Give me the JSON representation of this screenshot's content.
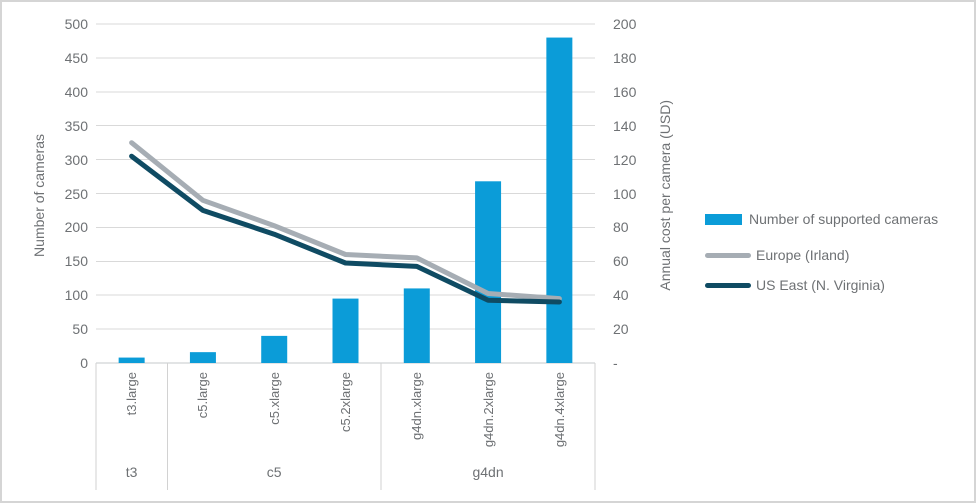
{
  "chart_data": {
    "type": "combo-bar-line",
    "categories": [
      "t3.large",
      "c5.large",
      "c5.xlarge",
      "c5.2xlarge",
      "g4dn.xlarge",
      "g4dn.2xlarge",
      "g4dn.4xlarge"
    ],
    "category_groups": [
      {
        "label": "t3",
        "span": 1
      },
      {
        "label": "c5",
        "span": 3
      },
      {
        "label": "g4dn",
        "span": 3
      }
    ],
    "series": [
      {
        "name": "Number of supported cameras",
        "type": "bar",
        "axis": "left",
        "color": "#0b9cd8",
        "values": [
          8,
          16,
          40,
          95,
          110,
          268,
          480
        ]
      },
      {
        "name": "Europe (Irland)",
        "type": "line",
        "axis": "right",
        "color": "#a6adb4",
        "values": [
          130,
          96,
          81,
          64,
          62,
          41,
          38
        ]
      },
      {
        "name": "US East (N. Virginia)",
        "type": "line",
        "axis": "right",
        "color": "#0f4b63",
        "values": [
          122,
          90,
          76,
          59,
          57,
          37,
          36
        ]
      }
    ],
    "left_axis": {
      "title": "Number of cameras",
      "min": 0,
      "max": 500,
      "step": 50
    },
    "right_axis": {
      "title": "Annual cost per camera (USD)",
      "min": 0,
      "max": 200,
      "step": 20,
      "zero_label": "-"
    },
    "legend_position": "right",
    "grid": true,
    "title": ""
  },
  "colors": {
    "bar": "#0b9cd8",
    "line_europe": "#a6adb4",
    "line_us_east": "#0f4b63",
    "gridline": "#d9d9d9",
    "axis_text": "#6e7174"
  }
}
